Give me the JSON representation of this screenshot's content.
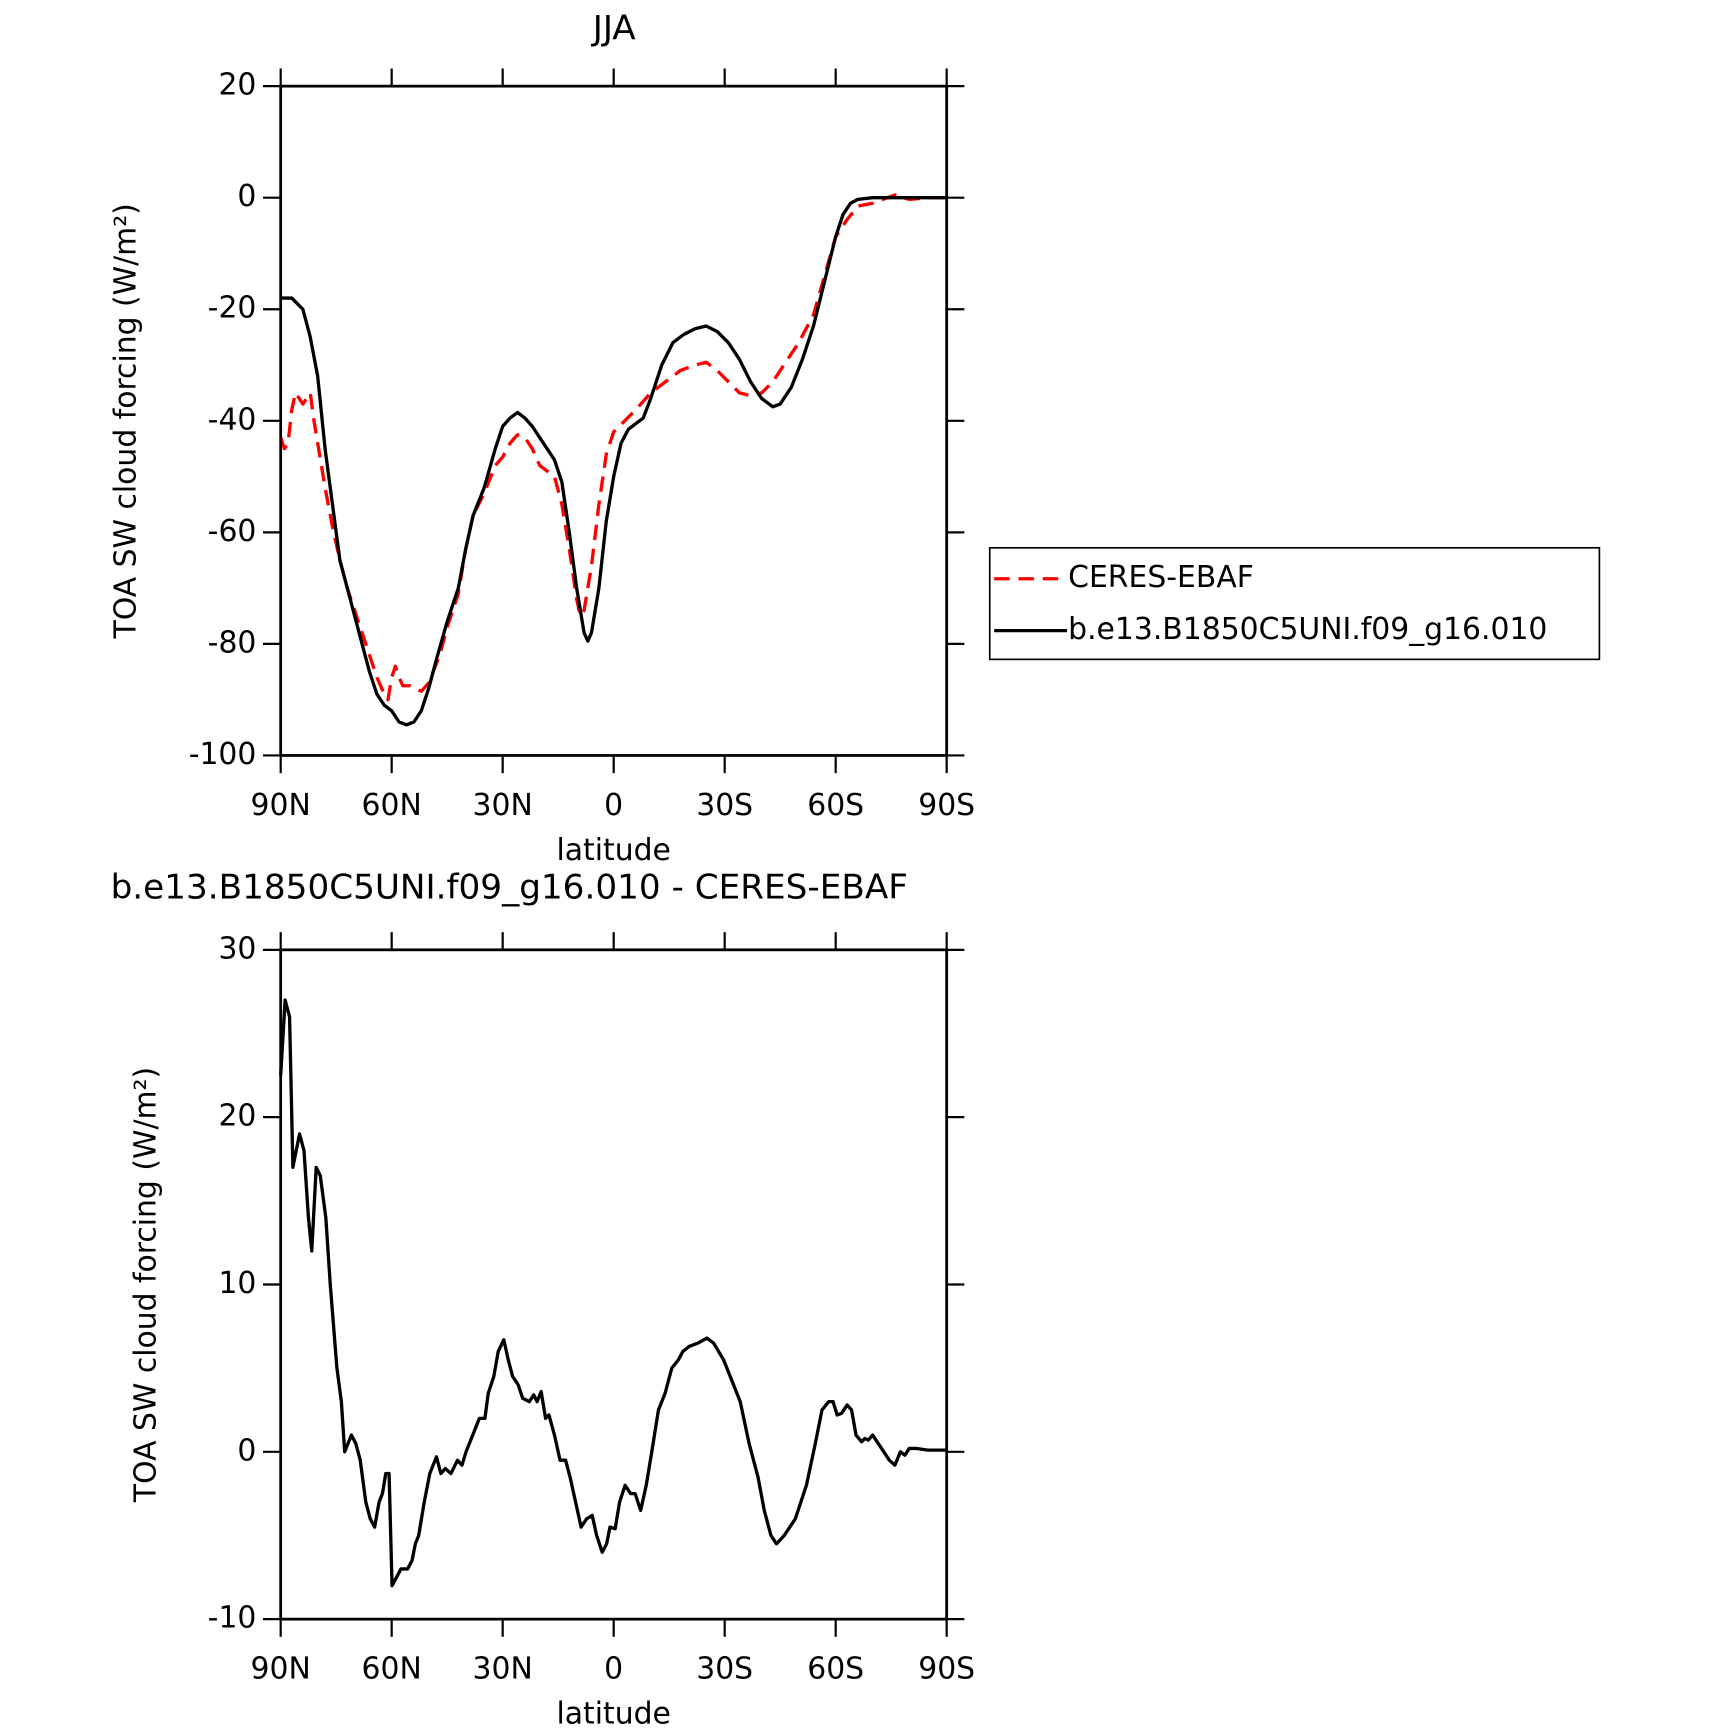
{
  "chart_data": [
    {
      "type": "line",
      "title": "JJA",
      "xlabel": "latitude",
      "ylabel": "TOA SW cloud forcing (W/m²)",
      "xlim": [
        90,
        -90
      ],
      "xticks": [
        {
          "value": 90,
          "label": "90N"
        },
        {
          "value": 60,
          "label": "60N"
        },
        {
          "value": 30,
          "label": "30N"
        },
        0,
        {
          "value": -30,
          "label": "30S"
        },
        {
          "value": -60,
          "label": "60S"
        },
        {
          "value": -90,
          "label": "90S"
        }
      ],
      "ylim": [
        -100,
        20
      ],
      "yticks": [
        -100,
        -80,
        -60,
        -40,
        -20,
        0,
        20
      ],
      "legend": "right",
      "series": [
        {
          "name": "CERES-EBAF",
          "color": "#ff0000",
          "linestyle": "dashed",
          "x": [
            90,
            89,
            88,
            87,
            86,
            85,
            84,
            83,
            82,
            81,
            80,
            78,
            76,
            74,
            72,
            70,
            68,
            66,
            64,
            62,
            61,
            60,
            59,
            58,
            57,
            55,
            52,
            50,
            47,
            45,
            42,
            40,
            38,
            35,
            32,
            30,
            28,
            26,
            24,
            22,
            20,
            18,
            16,
            14,
            12,
            10,
            9,
            8,
            6,
            4,
            2,
            0,
            -3,
            -6,
            -10,
            -14,
            -18,
            -22,
            -25,
            -28,
            -31,
            -34,
            -37,
            -40,
            -43,
            -46,
            -50,
            -54,
            -57,
            -60,
            -63,
            -66,
            -70,
            -74,
            -76,
            -78,
            -80,
            -85,
            -90
          ],
          "values": [
            -43,
            -45,
            -44,
            -38,
            -35,
            -36,
            -37,
            -36,
            -35,
            -40,
            -44,
            -52,
            -59,
            -65,
            -70,
            -74,
            -78,
            -82,
            -86,
            -89,
            -90,
            -86,
            -84,
            -86,
            -87.5,
            -87.5,
            -88.5,
            -87,
            -82,
            -77,
            -71,
            -63,
            -57,
            -53,
            -48,
            -46.5,
            -44,
            -42.5,
            -43,
            -45,
            -48,
            -49,
            -50,
            -55,
            -63,
            -72,
            -75,
            -74,
            -66,
            -55,
            -46,
            -42,
            -40,
            -38,
            -35,
            -33,
            -31,
            -30,
            -29.5,
            -31,
            -33,
            -35,
            -35.5,
            -35,
            -33,
            -30,
            -26,
            -21,
            -14,
            -7,
            -4,
            -1.5,
            -1,
            0,
            0.5,
            0,
            -0.3,
            0,
            0
          ]
        },
        {
          "name": "b.e13.B1850C5UNI.f09_g16.010",
          "color": "#000000",
          "linestyle": "solid",
          "x": [
            90,
            87,
            84,
            82,
            80,
            78,
            76,
            74,
            72,
            70,
            68,
            66,
            64,
            62,
            60,
            58,
            56,
            54,
            52,
            50,
            48,
            45,
            42,
            40,
            38,
            35,
            32,
            30,
            28,
            26,
            24,
            22,
            20,
            18,
            16,
            14,
            12,
            10,
            8,
            7,
            6,
            4,
            2,
            0,
            -2,
            -4,
            -6,
            -8,
            -10,
            -13,
            -16,
            -19,
            -22,
            -25,
            -28,
            -31,
            -34,
            -37,
            -40,
            -43,
            -45,
            -48,
            -51,
            -54,
            -57,
            -60,
            -62,
            -64,
            -66,
            -70,
            -75,
            -80,
            -85,
            -90
          ],
          "values": [
            -18,
            -18,
            -20,
            -25,
            -32,
            -45,
            -55,
            -65,
            -70,
            -75,
            -80,
            -85,
            -89,
            -91,
            -92,
            -94,
            -94.5,
            -94,
            -92,
            -88,
            -83,
            -76,
            -70,
            -63,
            -57,
            -52,
            -45,
            -41,
            -39.5,
            -38.5,
            -39.5,
            -41,
            -43,
            -45,
            -47,
            -51,
            -60,
            -70,
            -78,
            -79.5,
            -78,
            -70,
            -58,
            -50,
            -44,
            -41.5,
            -40.5,
            -39.5,
            -36,
            -30,
            -26,
            -24.5,
            -23.5,
            -23,
            -24,
            -26,
            -29,
            -33,
            -36,
            -37.5,
            -37,
            -34,
            -29,
            -23,
            -15,
            -7,
            -3,
            -1,
            -0.3,
            0,
            0,
            0,
            0,
            0
          ]
        }
      ]
    },
    {
      "type": "line",
      "title": "b.e13.B1850C5UNI.f09_g16.010 - CERES-EBAF",
      "xlabel": "latitude",
      "ylabel": "TOA SW cloud forcing (W/m²)",
      "xlim": [
        90,
        -90
      ],
      "xticks": [
        {
          "value": 90,
          "label": "90N"
        },
        {
          "value": 60,
          "label": "60N"
        },
        {
          "value": 30,
          "label": "30N"
        },
        0,
        {
          "value": -30,
          "label": "30S"
        },
        {
          "value": -60,
          "label": "60S"
        },
        {
          "value": -90,
          "label": "90S"
        }
      ],
      "ylim": [
        -10,
        30
      ],
      "yticks": [
        -10,
        0,
        10,
        20,
        30
      ],
      "series": [
        {
          "color": "#000000",
          "linestyle": "solid",
          "x": [
            90,
            88.8,
            87.6,
            86.7,
            84.9,
            83.7,
            82.5,
            81.6,
            80.4,
            79.3,
            77.8,
            76.6,
            74.8,
            73.6,
            72.7,
            70.9,
            69.7,
            68.5,
            67,
            65.8,
            64.6,
            63.4,
            62.5,
            61.6,
            60.7,
            59.9,
            58.7,
            57.5,
            55.7,
            54.5,
            53.6,
            52.7,
            51.2,
            49.7,
            47.9,
            46.7,
            45.5,
            44,
            42.2,
            41,
            39.9,
            38.1,
            36.3,
            34.8,
            33.9,
            32.4,
            31.2,
            29.7,
            28.5,
            27.3,
            25.8,
            24.6,
            22.8,
            21.6,
            20.7,
            19.6,
            18.4,
            17.5,
            16,
            14.5,
            13,
            11.8,
            10.3,
            8.8,
            7.3,
            5.8,
            4.6,
            3.1,
            1.9,
            1,
            -0.4,
            -1.6,
            -3.1,
            -4.6,
            -5.8,
            -7.3,
            -8.8,
            -10.3,
            -12.1,
            -13.9,
            -15.7,
            -17.5,
            -18.7,
            -20.4,
            -22.8,
            -25.2,
            -27,
            -29.7,
            -32.4,
            -34.2,
            -36.6,
            -39,
            -40.7,
            -42.5,
            -44,
            -46.1,
            -49.1,
            -52.1,
            -54.5,
            -56.3,
            -58.1,
            -59.3,
            -60.4,
            -61.6,
            -63.1,
            -64.3,
            -65.5,
            -67,
            -67.9,
            -68.8,
            -70,
            -71.5,
            -73,
            -74.5,
            -76,
            -77.5,
            -78.7,
            -79.9,
            -81.9,
            -84.9,
            -90
          ],
          "values": [
            22.5,
            27,
            26,
            17,
            19,
            18,
            14,
            12,
            17,
            16.5,
            14,
            10,
            5,
            3,
            0,
            1,
            0.5,
            -0.5,
            -3,
            -4,
            -4.5,
            -3,
            -2.5,
            -1.3,
            -1.3,
            -8,
            -7.5,
            -7,
            -7,
            -6.5,
            -5.5,
            -5,
            -3,
            -1.3,
            -0.3,
            -1.3,
            -1,
            -1.3,
            -0.5,
            -0.8,
            0,
            1,
            2,
            2,
            3.5,
            4.5,
            6,
            6.7,
            5.5,
            4.5,
            4,
            3.2,
            3,
            3.4,
            3,
            3.6,
            2,
            2.2,
            1,
            -0.5,
            -0.5,
            -1.5,
            -3,
            -4.5,
            -4,
            -3.8,
            -5,
            -6,
            -5.5,
            -4.5,
            -4.6,
            -3,
            -2,
            -2.5,
            -2.5,
            -3.5,
            -2,
            0,
            2.5,
            3.5,
            5,
            5.5,
            6,
            6.3,
            6.5,
            6.8,
            6.5,
            5.5,
            4,
            3,
            0.5,
            -1.5,
            -3.5,
            -5,
            -5.5,
            -5,
            -4,
            -2,
            0.5,
            2.5,
            3,
            3,
            2.2,
            2.3,
            2.8,
            2.5,
            1,
            0.6,
            0.8,
            0.7,
            1,
            0.5,
            0,
            -0.5,
            -0.8,
            0,
            -0.2,
            0.2,
            0.2,
            0.1,
            0.1
          ]
        }
      ]
    }
  ]
}
